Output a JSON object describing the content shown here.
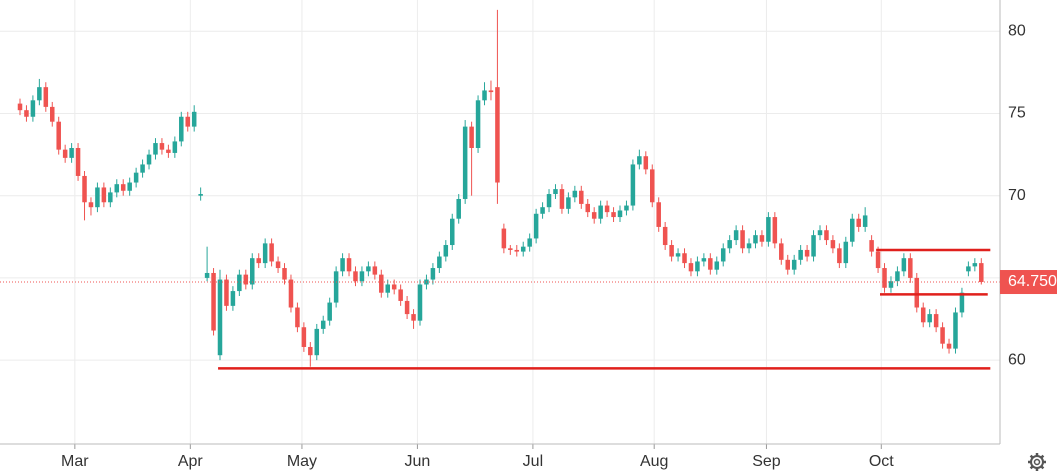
{
  "chart_data": {
    "type": "candlestick",
    "open": [
      75.6,
      75.2,
      74.8,
      75.8,
      76.6,
      75.4,
      74.5,
      72.8,
      72.3,
      72.9,
      71.2,
      69.6,
      69.3,
      70.5,
      69.6,
      70.2,
      70.7,
      70.3,
      70.8,
      71.4,
      71.9,
      72.5,
      73.2,
      72.8,
      72.6,
      73.3,
      74.8,
      74.2,
      70.0,
      65.0,
      65.3,
      60.3,
      64.9,
      63.3,
      64.2,
      65.2,
      64.6,
      66.2,
      65.9,
      67.1,
      66.0,
      65.6,
      64.9,
      63.2,
      62.0,
      60.8,
      60.3,
      61.9,
      62.4,
      63.5,
      65.4,
      66.2,
      65.4,
      64.8,
      65.4,
      65.7,
      65.2,
      64.1,
      64.6,
      64.3,
      63.6,
      62.8,
      62.4,
      64.6,
      64.9,
      65.6,
      66.3,
      67.0,
      68.6,
      69.8,
      74.2,
      72.9,
      75.8,
      76.4,
      76.6,
      68.0,
      66.8,
      66.7,
      66.6,
      66.9,
      67.4,
      68.9,
      69.3,
      70.1,
      70.4,
      69.2,
      69.9,
      70.3,
      69.5,
      69.0,
      68.6,
      69.4,
      69.0,
      68.7,
      69.1,
      69.4,
      71.9,
      72.4,
      71.6,
      69.6,
      68.1,
      67.0,
      66.3,
      66.5,
      65.9,
      65.4,
      66.0,
      66.2,
      65.5,
      66.0,
      66.8,
      67.3,
      67.9,
      66.8,
      67.1,
      67.6,
      67.2,
      68.7,
      67.1,
      66.1,
      65.5,
      66.1,
      66.7,
      66.3,
      67.6,
      67.9,
      67.3,
      66.8,
      65.9,
      67.2,
      68.6,
      68.1,
      67.3,
      66.6,
      65.6,
      64.4,
      64.8,
      65.4,
      66.2,
      65.0,
      63.2,
      62.3,
      62.8,
      62.0,
      61.0,
      60.7,
      62.9,
      65.4,
      65.7,
      65.9
    ],
    "high": [
      75.9,
      75.5,
      76.1,
      77.1,
      76.9,
      75.7,
      74.8,
      73.1,
      73.2,
      73.2,
      71.5,
      69.9,
      70.8,
      70.8,
      70.5,
      71.0,
      71.0,
      71.1,
      71.7,
      72.2,
      72.8,
      73.5,
      73.5,
      73.1,
      73.6,
      75.1,
      75.1,
      75.5,
      70.5,
      66.9,
      65.6,
      65.5,
      65.2,
      64.5,
      65.5,
      65.5,
      66.5,
      66.5,
      67.4,
      67.4,
      66.3,
      65.9,
      65.2,
      63.5,
      62.3,
      61.1,
      62.2,
      62.7,
      63.8,
      65.7,
      66.5,
      66.5,
      65.7,
      65.7,
      66.0,
      66.0,
      65.5,
      64.9,
      64.9,
      64.6,
      63.9,
      63.1,
      64.9,
      65.2,
      65.9,
      66.6,
      67.3,
      68.9,
      70.1,
      74.6,
      74.5,
      76.1,
      76.9,
      77.0,
      81.3,
      68.3,
      67.0,
      67.0,
      67.2,
      67.7,
      69.2,
      69.6,
      70.4,
      70.7,
      70.7,
      70.2,
      70.6,
      70.6,
      69.8,
      69.3,
      69.7,
      69.7,
      69.3,
      69.4,
      69.7,
      72.2,
      72.8,
      72.7,
      71.9,
      69.9,
      68.4,
      67.3,
      66.8,
      66.8,
      66.2,
      66.3,
      66.5,
      66.5,
      66.3,
      67.1,
      67.6,
      68.2,
      68.2,
      67.4,
      67.9,
      67.9,
      69.0,
      69.0,
      67.4,
      66.4,
      66.4,
      67.0,
      67.0,
      67.9,
      68.2,
      68.2,
      67.6,
      67.1,
      67.5,
      68.9,
      68.9,
      69.3,
      67.6,
      66.9,
      65.9,
      65.1,
      65.7,
      66.5,
      66.5,
      65.3,
      63.5,
      63.1,
      63.1,
      62.3,
      61.3,
      63.2,
      64.4,
      66.0,
      66.2,
      66.2
    ],
    "low": [
      74.9,
      74.5,
      74.5,
      75.5,
      75.1,
      74.2,
      72.5,
      72.0,
      72.0,
      70.9,
      68.5,
      68.8,
      69.0,
      69.3,
      69.3,
      69.9,
      70.0,
      70.0,
      70.5,
      71.1,
      71.6,
      72.2,
      72.5,
      72.3,
      72.3,
      73.0,
      73.9,
      73.9,
      69.7,
      64.8,
      61.5,
      60.0,
      63.0,
      63.0,
      63.9,
      64.3,
      64.3,
      65.6,
      65.6,
      65.7,
      65.3,
      64.6,
      62.9,
      61.7,
      60.5,
      59.6,
      60.0,
      61.6,
      62.1,
      63.2,
      65.1,
      65.1,
      64.5,
      64.5,
      65.1,
      64.9,
      63.8,
      63.8,
      64.0,
      63.3,
      62.5,
      61.9,
      62.1,
      64.3,
      64.6,
      65.3,
      66.0,
      66.7,
      68.3,
      69.5,
      70.0,
      72.6,
      75.5,
      75.8,
      69.5,
      66.5,
      66.4,
      66.3,
      66.3,
      66.6,
      67.1,
      68.6,
      69.0,
      69.8,
      68.9,
      68.9,
      69.6,
      69.2,
      68.7,
      68.3,
      68.3,
      68.7,
      68.4,
      68.4,
      68.8,
      69.1,
      71.6,
      71.3,
      69.3,
      67.8,
      66.7,
      66.0,
      66.0,
      65.6,
      65.1,
      65.1,
      65.7,
      65.2,
      65.2,
      65.7,
      66.5,
      67.0,
      66.5,
      66.5,
      66.8,
      66.9,
      66.9,
      66.8,
      65.8,
      65.2,
      65.2,
      65.8,
      66.0,
      66.0,
      67.3,
      67.0,
      66.5,
      65.6,
      65.6,
      66.9,
      67.8,
      67.8,
      66.3,
      65.3,
      64.1,
      64.1,
      64.5,
      65.1,
      64.7,
      62.9,
      62.0,
      62.0,
      61.7,
      60.7,
      60.4,
      60.4,
      62.6,
      65.1,
      65.4,
      64.6
    ],
    "close": [
      75.2,
      74.8,
      75.8,
      76.6,
      75.4,
      74.5,
      72.8,
      72.3,
      72.9,
      71.2,
      69.6,
      69.3,
      70.5,
      69.6,
      70.2,
      70.7,
      70.3,
      70.8,
      71.4,
      71.9,
      72.5,
      73.2,
      72.8,
      72.6,
      73.3,
      74.8,
      74.2,
      75.1,
      70.1,
      65.3,
      61.8,
      64.9,
      63.3,
      64.2,
      65.2,
      64.6,
      66.2,
      65.9,
      67.1,
      66.0,
      65.6,
      64.9,
      63.2,
      62.0,
      60.8,
      60.3,
      61.9,
      62.4,
      63.5,
      65.4,
      66.2,
      65.4,
      64.8,
      65.4,
      65.7,
      65.2,
      64.1,
      64.6,
      64.3,
      63.6,
      62.8,
      62.4,
      64.6,
      64.9,
      65.6,
      66.3,
      67.0,
      68.6,
      69.8,
      74.2,
      72.9,
      75.8,
      76.4,
      76.3,
      70.8,
      66.8,
      66.7,
      66.6,
      66.9,
      67.4,
      68.9,
      69.3,
      70.1,
      70.4,
      69.2,
      69.9,
      70.3,
      69.5,
      69.0,
      68.6,
      69.4,
      69.0,
      68.7,
      69.1,
      69.4,
      71.9,
      72.4,
      71.6,
      69.6,
      68.1,
      67.0,
      66.3,
      66.5,
      65.9,
      65.4,
      66.0,
      66.2,
      65.5,
      66.0,
      66.8,
      67.3,
      67.9,
      66.8,
      67.1,
      67.6,
      67.2,
      68.7,
      67.1,
      66.1,
      65.5,
      66.1,
      66.7,
      66.3,
      67.6,
      67.9,
      67.3,
      66.8,
      65.9,
      67.2,
      68.6,
      68.1,
      68.8,
      66.6,
      65.6,
      64.4,
      64.8,
      65.4,
      66.2,
      65.0,
      63.2,
      62.3,
      62.8,
      62.0,
      61.0,
      60.7,
      62.9,
      64.1,
      65.7,
      65.9,
      64.75
    ],
    "up_color": "#26a69a",
    "down_color": "#ef5350",
    "xlim": [
      -3.1,
      151.9
    ],
    "xticks": [
      {
        "value": 8.5,
        "label": "Mar"
      },
      {
        "value": 26.4,
        "label": "Apr"
      },
      {
        "value": 43.7,
        "label": "May"
      },
      {
        "value": 61.6,
        "label": "Jun"
      },
      {
        "value": 79.5,
        "label": "Jul"
      },
      {
        "value": 98.3,
        "label": "Aug"
      },
      {
        "value": 115.7,
        "label": "Sep"
      },
      {
        "value": 133.5,
        "label": "Oct"
      }
    ],
    "ylim": [
      54.9,
      81.9
    ],
    "yticks": [
      60,
      65,
      70,
      75,
      80
    ],
    "grid": true,
    "last_price": {
      "value": 64.75,
      "label": "64.750"
    },
    "lines": [
      {
        "y": 59.5,
        "x": [
          30.7,
          150.4
        ]
      },
      {
        "y": 66.7,
        "x": [
          132.7,
          150.4
        ]
      },
      {
        "y": 64.0,
        "x": [
          133.3,
          150.0
        ]
      }
    ],
    "line_color": "#e0201c"
  }
}
